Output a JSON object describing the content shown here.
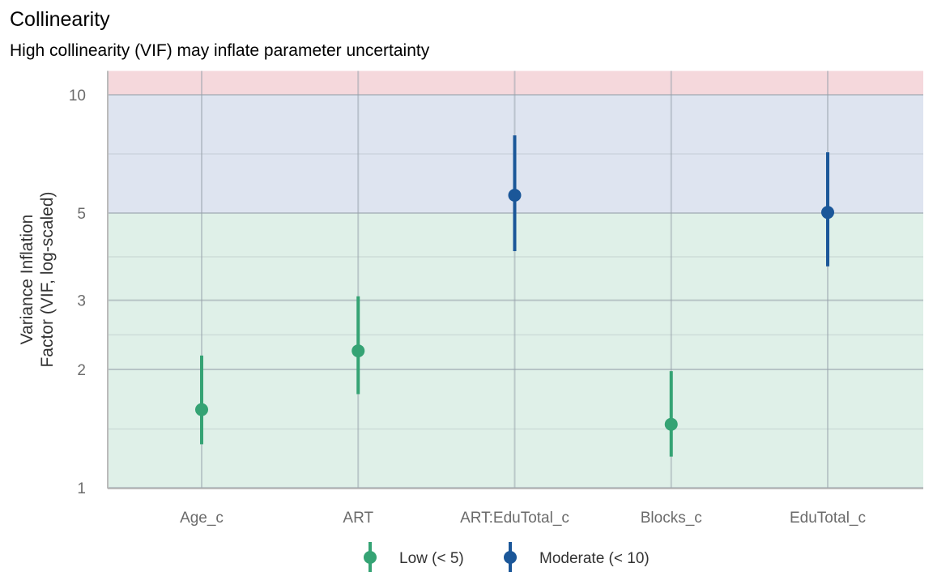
{
  "chart_data": {
    "type": "scatter",
    "title": "Collinearity",
    "subtitle": "High collinearity (VIF) may inflate parameter uncertainty",
    "xlabel": "",
    "ylabel": [
      "Variance Inflation",
      "Factor (VIF, log-scaled)"
    ],
    "y_scale": "log",
    "ylim": [
      1,
      11.5
    ],
    "y_ticks": [
      1,
      2,
      3,
      5,
      10
    ],
    "y_minor_ticks": [
      1.41,
      2.45,
      3.87,
      7.07
    ],
    "grid": true,
    "bands": [
      {
        "from": 1,
        "to": 5,
        "color": "#dff0e8"
      },
      {
        "from": 5,
        "to": 10,
        "color": "#dee4f0"
      },
      {
        "from": 10,
        "to": 11.5,
        "color": "#f5d8dc"
      }
    ],
    "categories": [
      "Age_c",
      "ART",
      "ART:EduTotal_c",
      "Blocks_c",
      "EduTotal_c"
    ],
    "points": [
      {
        "term": "Age_c",
        "vif": 1.58,
        "low": 1.29,
        "high": 2.17,
        "group": "Low (< 5)"
      },
      {
        "term": "ART",
        "vif": 2.23,
        "low": 1.73,
        "high": 3.07,
        "group": "Low (< 5)"
      },
      {
        "term": "ART:EduTotal_c",
        "vif": 5.55,
        "low": 4.0,
        "high": 7.88,
        "group": "Moderate (< 10)"
      },
      {
        "term": "Blocks_c",
        "vif": 1.45,
        "low": 1.2,
        "high": 1.98,
        "group": "Low (< 5)"
      },
      {
        "term": "EduTotal_c",
        "vif": 5.02,
        "low": 3.66,
        "high": 7.14,
        "group": "Moderate (< 10)"
      }
    ],
    "legend": {
      "placement": "bottom",
      "entries": [
        {
          "label": "Low (< 5)",
          "color": "#35a374"
        },
        {
          "label": "Moderate (< 10)",
          "color": "#1b5799"
        }
      ]
    }
  }
}
